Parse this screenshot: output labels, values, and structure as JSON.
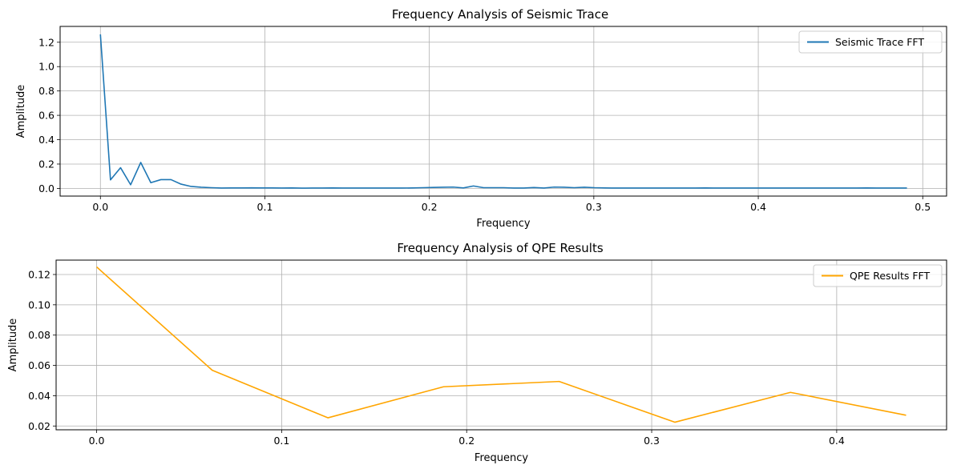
{
  "chart_data": [
    {
      "type": "line",
      "title": "Frequency Analysis of Seismic Trace",
      "xlabel": "Frequency",
      "ylabel": "Amplitude",
      "xlim": [
        -0.0245,
        0.5145
      ],
      "ylim": [
        -0.063,
        1.33
      ],
      "xticks": [
        0.0,
        0.1,
        0.2,
        0.3,
        0.4,
        0.5
      ],
      "xtick_labels": [
        "0.0",
        "0.1",
        "0.2",
        "0.3",
        "0.4",
        "0.5"
      ],
      "yticks": [
        0.0,
        0.2,
        0.4,
        0.6,
        0.8,
        1.0,
        1.2
      ],
      "ytick_labels": [
        "0.0",
        "0.2",
        "0.4",
        "0.6",
        "0.8",
        "1.0",
        "1.2"
      ],
      "grid": true,
      "legend_position": "top-right",
      "series": [
        {
          "name": "Seismic Trace FFT",
          "color": "#1f77b4",
          "x": [
            0.0,
            0.00613,
            0.01226,
            0.01839,
            0.02452,
            0.03065,
            0.03678,
            0.04291,
            0.04904,
            0.05517,
            0.0613,
            0.06743,
            0.07356,
            0.07969,
            0.08582,
            0.09195,
            0.09808,
            0.10421,
            0.11034,
            0.11647,
            0.1226,
            0.12873,
            0.13486,
            0.14099,
            0.14712,
            0.15325,
            0.15938,
            0.16551,
            0.17164,
            0.17777,
            0.1839,
            0.19003,
            0.19616,
            0.20229,
            0.20842,
            0.21455,
            0.22068,
            0.22681,
            0.23294,
            0.23907,
            0.2452,
            0.25133,
            0.25746,
            0.26359,
            0.26972,
            0.27585,
            0.28198,
            0.28811,
            0.29424,
            0.30037,
            0.3065,
            0.31263,
            0.31876,
            0.32489,
            0.33102,
            0.33715,
            0.34328,
            0.34941,
            0.35554,
            0.36167,
            0.3678,
            0.37393,
            0.38006,
            0.38619,
            0.39232,
            0.39845,
            0.40458,
            0.41071,
            0.41684,
            0.42297,
            0.4291,
            0.43523,
            0.44136,
            0.44749,
            0.45362,
            0.45975,
            0.46588,
            0.47201,
            0.47814,
            0.48427,
            0.4904
          ],
          "y": [
            1.265,
            0.07,
            0.17,
            0.03,
            0.213,
            0.047,
            0.072,
            0.072,
            0.035,
            0.016,
            0.01,
            0.006,
            0.003,
            0.004,
            0.004,
            0.005,
            0.004,
            0.004,
            0.003,
            0.004,
            0.002,
            0.003,
            0.003,
            0.004,
            0.003,
            0.003,
            0.003,
            0.003,
            0.003,
            0.003,
            0.003,
            0.004,
            0.006,
            0.008,
            0.01,
            0.011,
            0.004,
            0.02,
            0.006,
            0.006,
            0.006,
            0.003,
            0.003,
            0.007,
            0.003,
            0.011,
            0.01,
            0.006,
            0.01,
            0.006,
            0.004,
            0.003,
            0.003,
            0.003,
            0.003,
            0.003,
            0.003,
            0.003,
            0.003,
            0.003,
            0.004,
            0.003,
            0.003,
            0.003,
            0.003,
            0.003,
            0.003,
            0.003,
            0.003,
            0.003,
            0.003,
            0.003,
            0.003,
            0.003,
            0.003,
            0.003,
            0.004,
            0.003,
            0.003,
            0.003,
            0.003
          ]
        }
      ]
    },
    {
      "type": "line",
      "title": "Frequency Analysis of QPE Results",
      "xlabel": "Frequency",
      "ylabel": "Amplitude",
      "xlim": [
        -0.0219,
        0.4594
      ],
      "ylim": [
        0.0175,
        0.1295
      ],
      "xticks": [
        0.0,
        0.1,
        0.2,
        0.3,
        0.4
      ],
      "xtick_labels": [
        "0.0",
        "0.1",
        "0.2",
        "0.3",
        "0.4"
      ],
      "yticks": [
        0.02,
        0.04,
        0.06,
        0.08,
        0.1,
        0.12
      ],
      "ytick_labels": [
        "0.02",
        "0.04",
        "0.06",
        "0.08",
        "0.10",
        "0.12"
      ],
      "grid": true,
      "legend_position": "top-right",
      "series": [
        {
          "name": "QPE Results FFT",
          "color": "#ffa500",
          "x": [
            0.0,
            0.0625,
            0.125,
            0.1875,
            0.25,
            0.3125,
            0.375,
            0.4375
          ],
          "y": [
            0.125,
            0.0568,
            0.0254,
            0.0459,
            0.0494,
            0.0225,
            0.0422,
            0.0271
          ]
        }
      ]
    }
  ]
}
